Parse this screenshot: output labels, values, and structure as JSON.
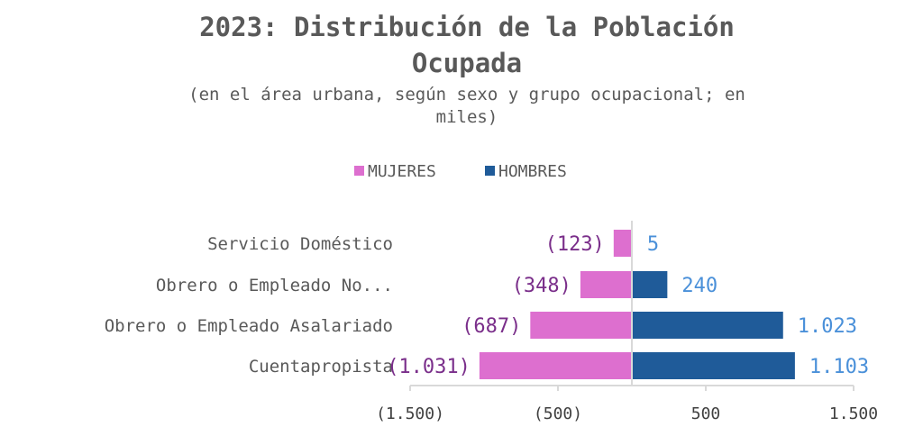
{
  "chart_data": {
    "type": "bar",
    "orientation": "horizontal",
    "title_line1": "2023: Distribución de la Población",
    "title_line2": "Ocupada",
    "subtitle_line1": "(en el área urbana, según sexo y grupo ocupacional; en",
    "subtitle_line2": "miles)",
    "categories": [
      "Servicio Doméstico",
      "Obrero o Empleado No...",
      "Obrero o Empleado Asalariado",
      "Cuentapropista"
    ],
    "series": [
      {
        "name": "MUJERES",
        "values": [
          -123,
          -348,
          -687,
          -1031
        ],
        "labels": [
          "(123)",
          "(348)",
          "(687)",
          "(1.031)"
        ],
        "color": "#dd6fcf",
        "label_color": "#7a2e8a"
      },
      {
        "name": "HOMBRES",
        "values": [
          5,
          240,
          1023,
          1103
        ],
        "labels": [
          "5",
          "240",
          "1.023",
          "1.103"
        ],
        "color": "#1f5b99",
        "label_color": "#4a90d9"
      }
    ],
    "xlim": [
      -1500,
      1500
    ],
    "xticks": [
      -1500,
      -500,
      500,
      1500
    ],
    "xtick_labels": [
      "(1.500)",
      "(500)",
      "500",
      "1.500"
    ],
    "legend_position": "top",
    "grid": false,
    "xlabel": "",
    "ylabel": ""
  }
}
